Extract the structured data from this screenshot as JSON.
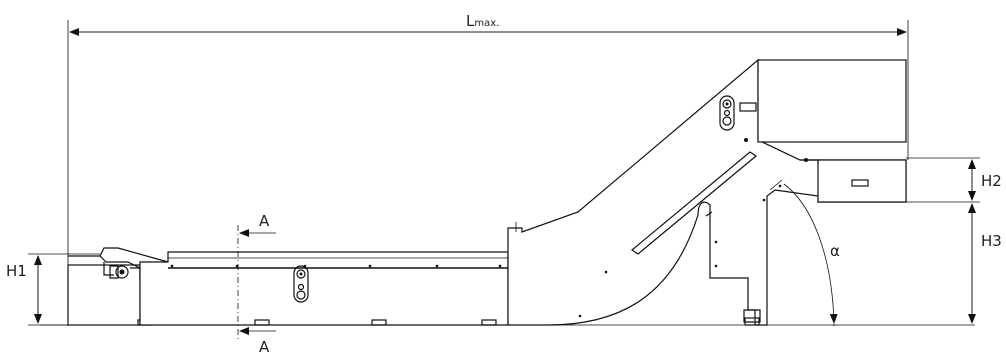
{
  "dimensions": {
    "length_max": {
      "main": "L",
      "sub": "max."
    },
    "h1": "H1",
    "h2": "H2",
    "h3": "H3",
    "angle": "α",
    "section_top": "A",
    "section_bottom": "A"
  },
  "colors": {
    "line": "#111111",
    "label": "#222222",
    "background": "#ffffff"
  }
}
